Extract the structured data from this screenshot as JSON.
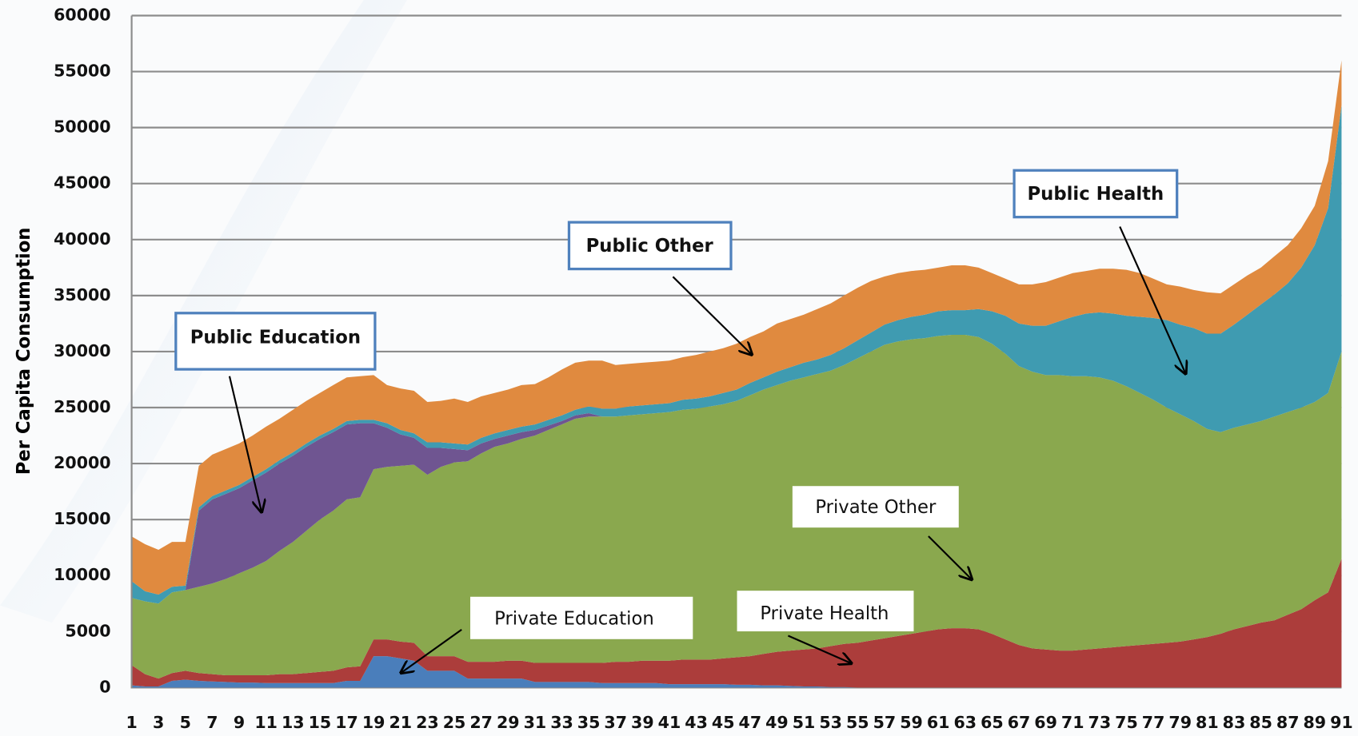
{
  "chart_data": {
    "type": "stacked-area",
    "y_label": "Per Capita Consumption",
    "x": [
      1,
      2,
      3,
      4,
      5,
      6,
      7,
      8,
      9,
      10,
      11,
      12,
      13,
      14,
      15,
      16,
      17,
      18,
      19,
      20,
      21,
      22,
      23,
      24,
      25,
      26,
      27,
      28,
      29,
      30,
      31,
      32,
      33,
      34,
      35,
      36,
      37,
      38,
      39,
      40,
      41,
      42,
      43,
      44,
      45,
      46,
      47,
      48,
      49,
      50,
      51,
      52,
      53,
      54,
      55,
      56,
      57,
      58,
      59,
      60,
      61,
      62,
      63,
      64,
      65,
      66,
      67,
      68,
      69,
      70,
      71,
      72,
      73,
      74,
      75,
      76,
      77,
      78,
      79,
      80,
      81,
      82,
      83,
      84,
      85,
      86,
      87,
      88,
      89,
      90,
      91
    ],
    "xlim": [
      1,
      91
    ],
    "xticks": [
      1,
      3,
      5,
      7,
      9,
      11,
      13,
      15,
      17,
      19,
      21,
      23,
      25,
      27,
      29,
      31,
      33,
      35,
      37,
      39,
      41,
      43,
      45,
      47,
      49,
      51,
      53,
      55,
      57,
      59,
      61,
      63,
      65,
      67,
      69,
      71,
      73,
      75,
      77,
      79,
      81,
      83,
      85,
      87,
      89,
      91
    ],
    "ylim": [
      0,
      60000
    ],
    "yticks": [
      0,
      5000,
      10000,
      15000,
      20000,
      25000,
      30000,
      35000,
      40000,
      45000,
      50000,
      55000,
      60000
    ],
    "grid": true,
    "series": [
      {
        "name": "Private Education",
        "color": "#4a7ebb",
        "values": [
          200,
          100,
          100,
          600,
          700,
          600,
          550,
          500,
          450,
          450,
          400,
          400,
          400,
          400,
          400,
          400,
          600,
          600,
          2800,
          2800,
          2600,
          2400,
          1500,
          1500,
          1500,
          800,
          800,
          800,
          800,
          800,
          500,
          500,
          500,
          500,
          500,
          400,
          400,
          400,
          400,
          400,
          300,
          300,
          300,
          300,
          300,
          250,
          250,
          200,
          200,
          150,
          100,
          100,
          50,
          50,
          0,
          0,
          0,
          0,
          0,
          0,
          0,
          0,
          0,
          0,
          0,
          0,
          0,
          0,
          0,
          0,
          0,
          0,
          0,
          0,
          0,
          0,
          0,
          0,
          0,
          0,
          0,
          0,
          0,
          0,
          0,
          0,
          0,
          0,
          0,
          0,
          0
        ]
      },
      {
        "name": "Private Health",
        "color": "#ac3d3b",
        "values": [
          1800,
          1100,
          700,
          700,
          800,
          700,
          650,
          600,
          650,
          650,
          700,
          800,
          800,
          900,
          1000,
          1100,
          1200,
          1300,
          1500,
          1500,
          1500,
          1600,
          1300,
          1300,
          1300,
          1500,
          1500,
          1500,
          1600,
          1600,
          1700,
          1700,
          1700,
          1700,
          1700,
          1800,
          1900,
          1900,
          2000,
          2000,
          2100,
          2200,
          2200,
          2200,
          2300,
          2450,
          2550,
          2800,
          3000,
          3150,
          3300,
          3400,
          3650,
          3850,
          4000,
          4200,
          4400,
          4600,
          4800,
          5000,
          5200,
          5300,
          5300,
          5200,
          4800,
          4300,
          3800,
          3500,
          3400,
          3300,
          3300,
          3400,
          3500,
          3600,
          3700,
          3800,
          3900,
          4000,
          4100,
          4300,
          4500,
          4800,
          5200,
          5500,
          5800,
          6000,
          6500,
          7000,
          7800,
          8500,
          11500
        ]
      },
      {
        "name": "Private Other",
        "color": "#8aa84e",
        "values": [
          6000,
          6500,
          6700,
          7200,
          7200,
          7700,
          8100,
          8600,
          9100,
          9600,
          10200,
          11000,
          11800,
          12700,
          13600,
          14300,
          15000,
          15100,
          15200,
          15400,
          15700,
          15900,
          16200,
          16900,
          17300,
          17900,
          18600,
          19200,
          19400,
          19800,
          20300,
          20800,
          21300,
          21800,
          22000,
          22000,
          21900,
          22000,
          22000,
          22100,
          22200,
          22300,
          22400,
          22600,
          22700,
          22900,
          23300,
          23600,
          23800,
          24100,
          24300,
          24500,
          24600,
          24900,
          25400,
          25800,
          26200,
          26300,
          26300,
          26200,
          26200,
          26200,
          26200,
          26100,
          25900,
          25500,
          24900,
          24700,
          24500,
          24600,
          24500,
          24400,
          24200,
          23800,
          23200,
          22500,
          21800,
          21000,
          20300,
          19500,
          18600,
          18000,
          18000,
          18000,
          18000,
          18200,
          18100,
          18000,
          17700,
          17800,
          18500
        ]
      },
      {
        "name": "Public Education",
        "color": "#6f5591",
        "values": [
          0,
          0,
          0,
          0,
          0,
          6800,
          7500,
          7600,
          7600,
          7800,
          7900,
          7800,
          7700,
          7500,
          7200,
          7000,
          6700,
          6600,
          4100,
          3500,
          2800,
          2400,
          2400,
          1700,
          1200,
          1000,
          900,
          700,
          700,
          600,
          500,
          400,
          300,
          300,
          300,
          0,
          0,
          0,
          0,
          0,
          0,
          0,
          0,
          0,
          0,
          0,
          0,
          0,
          0,
          0,
          0,
          0,
          0,
          0,
          0,
          0,
          0,
          0,
          0,
          0,
          0,
          0,
          0,
          0,
          0,
          0,
          0,
          0,
          0,
          0,
          0,
          0,
          0,
          0,
          0,
          0,
          0,
          0,
          0,
          0,
          0,
          0,
          0,
          0,
          0,
          0,
          0,
          0,
          0,
          0,
          0
        ]
      },
      {
        "name": "Public Health",
        "color": "#3f9bb1",
        "values": [
          1500,
          900,
          800,
          500,
          400,
          300,
          300,
          300,
          300,
          300,
          300,
          300,
          300,
          300,
          300,
          300,
          300,
          300,
          300,
          400,
          400,
          400,
          500,
          500,
          500,
          500,
          500,
          500,
          500,
          500,
          500,
          500,
          500,
          500,
          600,
          700,
          700,
          800,
          800,
          800,
          800,
          900,
          900,
          900,
          1000,
          1000,
          1100,
          1100,
          1200,
          1200,
          1300,
          1300,
          1400,
          1500,
          1600,
          1700,
          1800,
          1900,
          2000,
          2100,
          2200,
          2200,
          2200,
          2500,
          2900,
          3400,
          3800,
          4100,
          4400,
          4800,
          5300,
          5600,
          5800,
          6000,
          6300,
          6800,
          7300,
          7800,
          8000,
          8300,
          8500,
          8800,
          9200,
          9800,
          10400,
          10900,
          11500,
          12500,
          14000,
          16500,
          22000
        ]
      },
      {
        "name": "Public Other",
        "color": "#e08a3f",
        "values": [
          4000,
          4200,
          4000,
          4000,
          3900,
          3700,
          3700,
          3700,
          3700,
          3700,
          3800,
          3700,
          3800,
          3800,
          3800,
          3900,
          3900,
          3900,
          4000,
          3400,
          3700,
          3800,
          3600,
          3700,
          4000,
          3800,
          3700,
          3600,
          3600,
          3700,
          3600,
          3800,
          4100,
          4200,
          4100,
          4300,
          3900,
          3800,
          3800,
          3800,
          3800,
          3800,
          3900,
          4000,
          4000,
          4100,
          4100,
          4100,
          4300,
          4300,
          4300,
          4500,
          4600,
          4700,
          4700,
          4600,
          4300,
          4200,
          4100,
          4000,
          3900,
          4000,
          4000,
          3700,
          3400,
          3300,
          3500,
          3700,
          3900,
          3900,
          3900,
          3800,
          3900,
          4000,
          4100,
          3900,
          3500,
          3200,
          3400,
          3400,
          3700,
          3600,
          3600,
          3500,
          3300,
          3400,
          3400,
          3500,
          3500,
          4200,
          4000
        ]
      }
    ]
  }
}
